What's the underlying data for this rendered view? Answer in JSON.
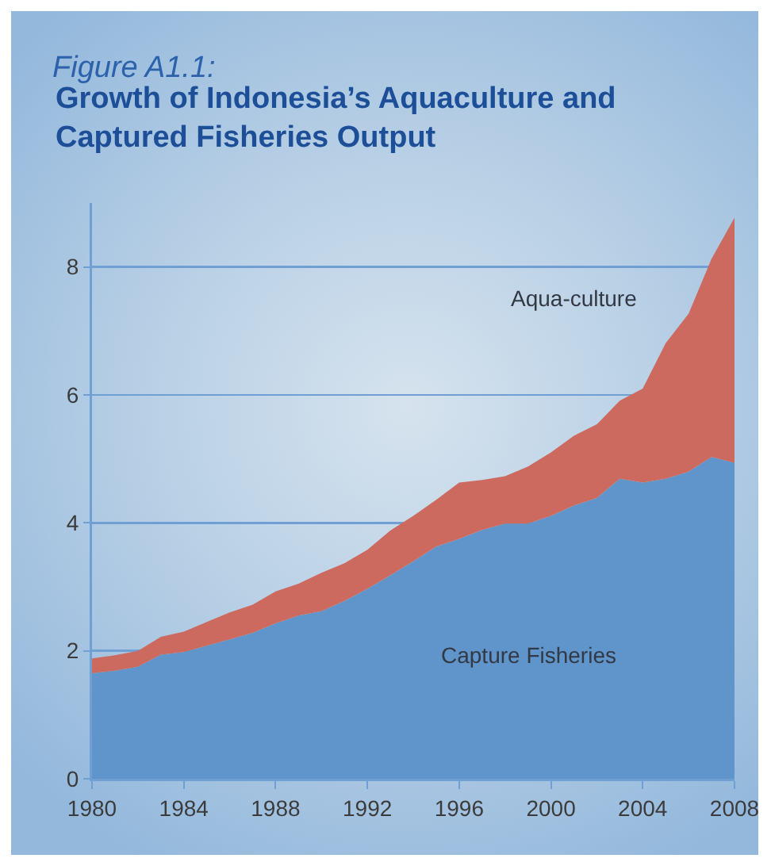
{
  "chart_data": {
    "type": "area",
    "title": "Figure A1.1:",
    "subtitle": "Growth of Indonesia’s Aquaculture and Captured Fisheries Output",
    "x": [
      1980,
      1981,
      1982,
      1983,
      1984,
      1985,
      1986,
      1987,
      1988,
      1989,
      1990,
      1991,
      1992,
      1993,
      1994,
      1995,
      1996,
      1997,
      1998,
      1999,
      2000,
      2001,
      2002,
      2003,
      2004,
      2005,
      2006,
      2007,
      2008
    ],
    "stacked": true,
    "series": [
      {
        "name": "Capture Fisheries",
        "color": "#5f95ca",
        "values": [
          1.65,
          1.69,
          1.75,
          1.94,
          1.98,
          2.08,
          2.18,
          2.28,
          2.43,
          2.55,
          2.62,
          2.78,
          2.97,
          3.18,
          3.4,
          3.63,
          3.75,
          3.89,
          3.99,
          3.99,
          4.11,
          4.27,
          4.39,
          4.69,
          4.63,
          4.69,
          4.8,
          5.03,
          4.94
        ]
      },
      {
        "name": "Aqua-culture",
        "color": "#cc6a60",
        "values": [
          0.23,
          0.24,
          0.25,
          0.28,
          0.32,
          0.37,
          0.42,
          0.44,
          0.5,
          0.5,
          0.6,
          0.59,
          0.61,
          0.7,
          0.71,
          0.73,
          0.88,
          0.78,
          0.74,
          0.89,
          0.99,
          1.09,
          1.15,
          1.22,
          1.47,
          2.12,
          2.47,
          3.1,
          3.83
        ]
      }
    ],
    "xlim": [
      1980,
      2008
    ],
    "xticks": [
      1980,
      1984,
      1988,
      1992,
      1996,
      2000,
      2004,
      2008
    ],
    "ylim": [
      0,
      9
    ],
    "yticks": [
      0,
      2,
      4,
      6,
      8
    ],
    "grid": "y",
    "legend": false
  }
}
